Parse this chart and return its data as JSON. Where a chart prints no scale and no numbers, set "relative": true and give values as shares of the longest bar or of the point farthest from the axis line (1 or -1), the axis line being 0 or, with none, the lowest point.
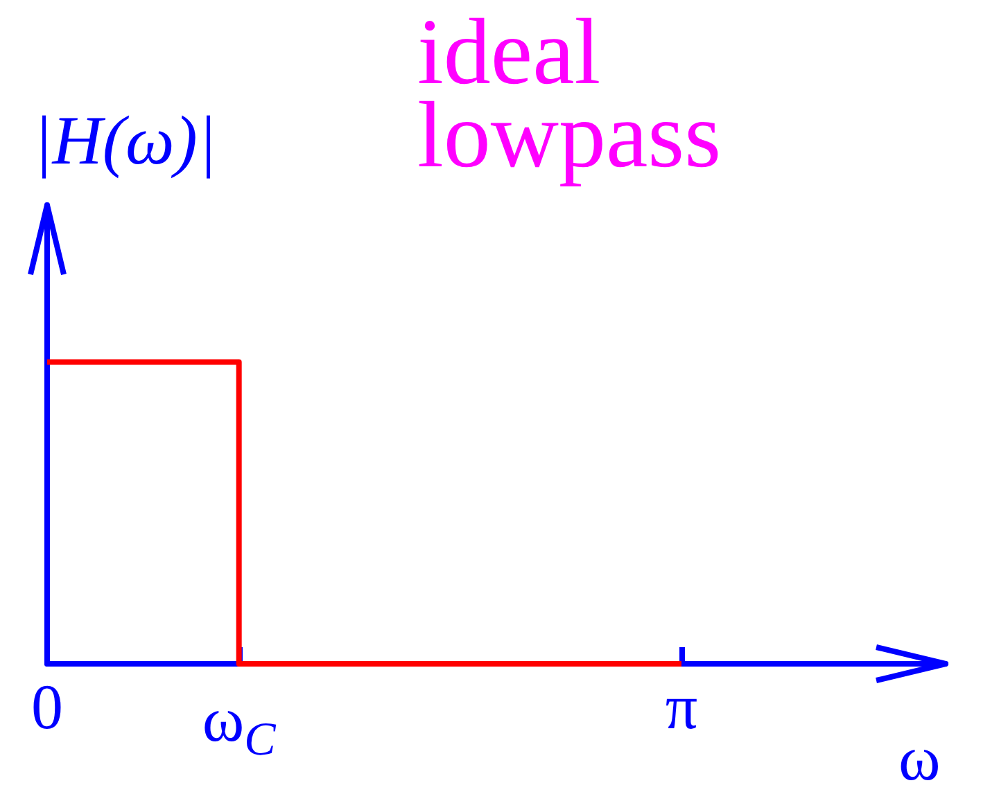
{
  "chart_data": {
    "type": "step",
    "title": "ideal lowpass",
    "xlabel": "ω",
    "ylabel": "|H(ω)|",
    "relative": true,
    "x": [
      0,
      0.95,
      3.1416
    ],
    "series": [
      {
        "color": "#ff0000",
        "values": [
          1,
          0,
          0
        ]
      }
    ],
    "xlim": [
      0,
      4.45
    ],
    "xticks": [
      0,
      {
        "value": 0.95,
        "label": "ω$_{C}$"
      },
      {
        "value": 3.1416,
        "label": "π"
      }
    ],
    "grid": false,
    "marker": "none",
    "line_style": "solid"
  }
}
